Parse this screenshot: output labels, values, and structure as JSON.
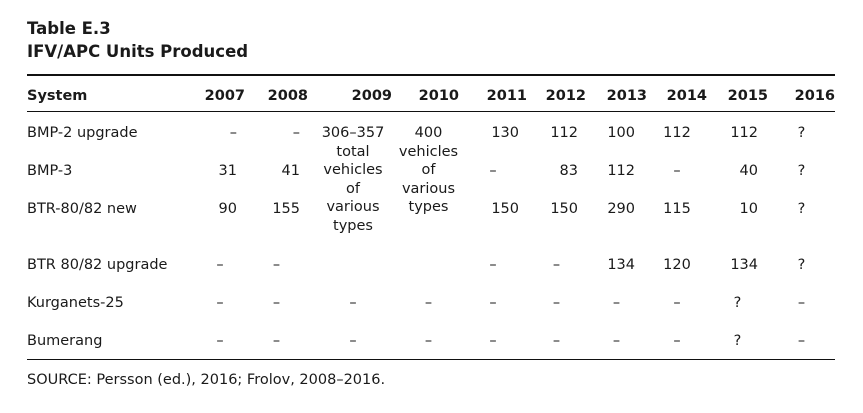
{
  "table": {
    "label": "Table E.3",
    "title": "IFV/APC Units Produced",
    "headers": [
      "System",
      "2007",
      "2008",
      "2009",
      "2010",
      "2011",
      "2012",
      "2013",
      "2014",
      "2015",
      "2016"
    ],
    "rows": [
      {
        "system": "BMP-2 upgrade",
        "y2007": "–",
        "y2008": "–",
        "y2011": "130",
        "y2012": "112",
        "y2013": "100",
        "y2014": "112",
        "y2015": "112",
        "y2016": "?"
      },
      {
        "system": "BMP-3",
        "y2007": "31",
        "y2008": "41",
        "y2011": "–",
        "y2012": "83",
        "y2013": "112",
        "y2014": "–",
        "y2015": "40",
        "y2016": "?"
      },
      {
        "system": "BTR-80/82 new",
        "y2007": "90",
        "y2008": "155",
        "y2011": "150",
        "y2012": "150",
        "y2013": "290",
        "y2014": "115",
        "y2015": "10",
        "y2016": "?"
      },
      {
        "system": "BTR 80/82 upgrade",
        "y2007": "–",
        "y2008": "–",
        "y2009": "",
        "y2010": "",
        "y2011": "–",
        "y2012": "–",
        "y2013": "134",
        "y2014": "120",
        "y2015": "134",
        "y2016": "?"
      },
      {
        "system": "Kurganets-25",
        "y2007": "–",
        "y2008": "–",
        "y2009": "–",
        "y2010": "–",
        "y2011": "–",
        "y2012": "–",
        "y2013": "–",
        "y2014": "–",
        "y2015": "?",
        "y2016": "–"
      },
      {
        "system": "Bumerang",
        "y2007": "–",
        "y2008": "–",
        "y2009": "–",
        "y2010": "–",
        "y2011": "–",
        "y2012": "–",
        "y2013": "–",
        "y2014": "–",
        "y2015": "?",
        "y2016": "–"
      }
    ],
    "merged_2009": {
      "line1": "306–357",
      "line2": "total",
      "line3": "vehicles",
      "line4": "of",
      "line5": "various",
      "line6": "types"
    },
    "merged_2010": {
      "line1": "400",
      "line2": "vehicles",
      "line3": "of",
      "line4": "various",
      "line5": "types"
    },
    "source": "SOURCE: Persson (ed.), 2016; Frolov, 2008–2016."
  }
}
